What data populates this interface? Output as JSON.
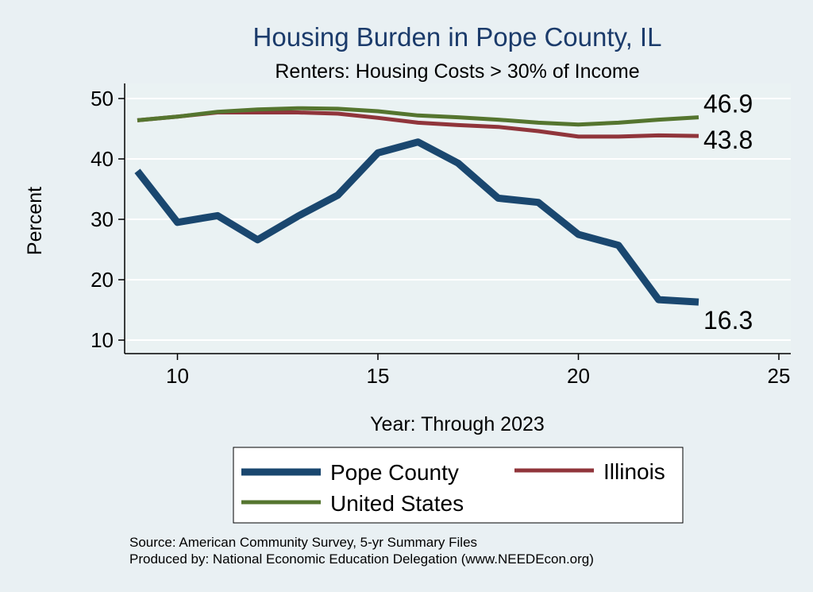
{
  "chart_data": {
    "type": "line",
    "title": "Housing Burden in Pope County, IL",
    "subtitle": "Renters: Housing Costs > 30% of Income",
    "xlabel": "Year: Through 2023",
    "ylabel": "Percent",
    "xlim": [
      8.7,
      25
    ],
    "ylim": [
      8.7,
      52
    ],
    "xticks": [
      10,
      15,
      20,
      25
    ],
    "yticks": [
      10,
      20,
      30,
      40,
      50
    ],
    "grid": true,
    "legend_position": "bottom",
    "series": [
      {
        "name": "Pope County",
        "color": "#1a476f",
        "x": [
          9,
          10,
          11,
          12,
          13,
          14,
          15,
          16,
          17,
          18,
          19,
          20,
          21,
          22,
          23
        ],
        "values": [
          38.0,
          29.5,
          30.6,
          26.6,
          30.5,
          34.0,
          41.0,
          42.8,
          39.3,
          33.5,
          32.8,
          27.5,
          25.7,
          16.7,
          16.3
        ],
        "end_label": "16.3"
      },
      {
        "name": "Illinois",
        "color": "#90353b",
        "x": [
          9,
          10,
          11,
          12,
          13,
          14,
          15,
          16,
          17,
          18,
          19,
          20,
          21,
          22,
          23
        ],
        "values": [
          46.4,
          47.0,
          47.7,
          47.7,
          47.7,
          47.5,
          46.8,
          46.0,
          45.6,
          45.3,
          44.6,
          43.7,
          43.7,
          43.9,
          43.8
        ],
        "end_label": "43.8"
      },
      {
        "name": "United States",
        "color": "#55752f",
        "x": [
          9,
          10,
          11,
          12,
          13,
          14,
          15,
          16,
          17,
          18,
          19,
          20,
          21,
          22,
          23
        ],
        "values": [
          46.4,
          47.0,
          47.8,
          48.2,
          48.4,
          48.3,
          47.9,
          47.2,
          46.9,
          46.5,
          46.0,
          45.7,
          46.0,
          46.5,
          46.9
        ],
        "end_label": "46.9"
      }
    ]
  },
  "source_note": "Source: American Community Survey, 5-yr Summary Files",
  "produced_note": "Produced by: National Economic Education Delegation (www.NEEDEcon.org)"
}
